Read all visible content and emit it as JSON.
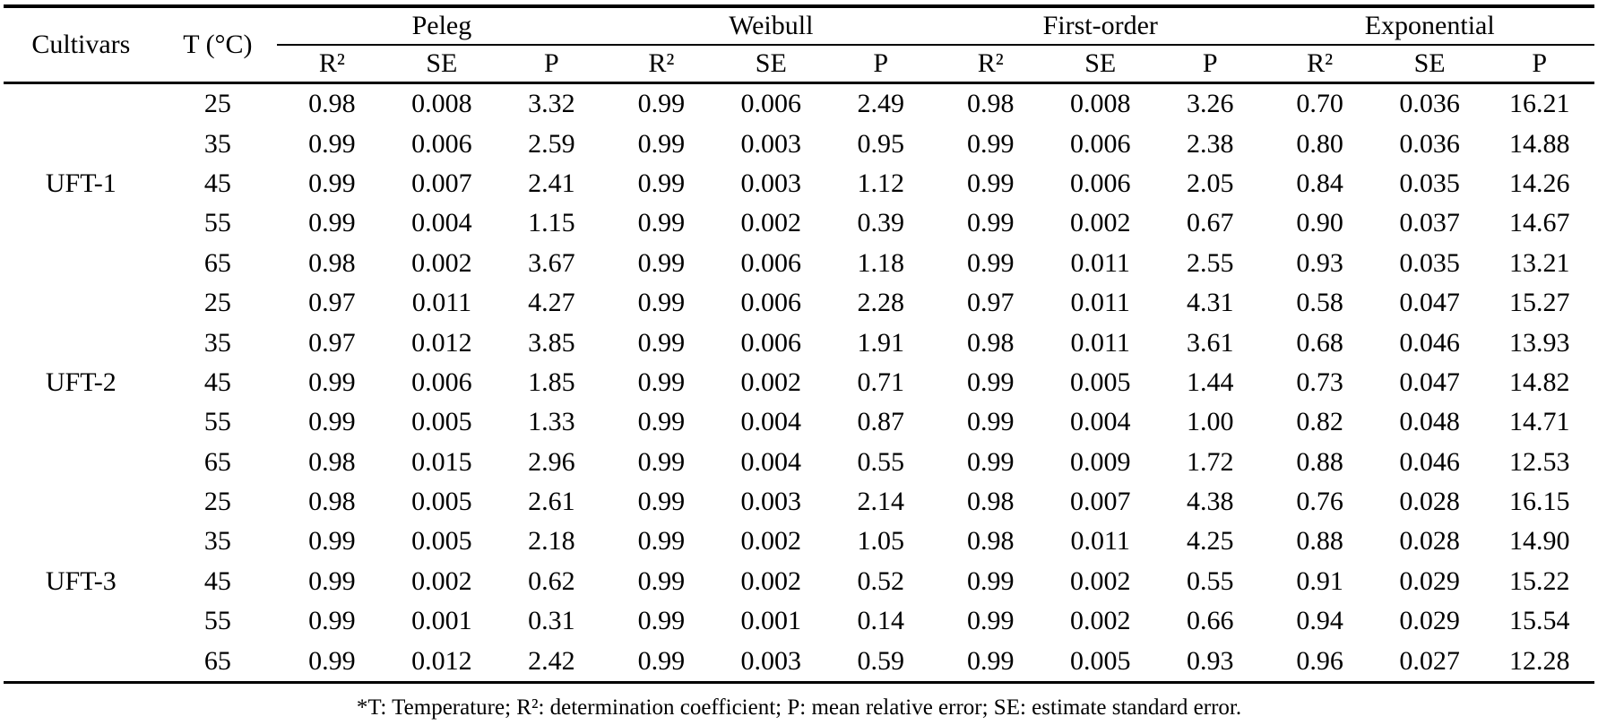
{
  "table": {
    "col_headers": {
      "cultivars": "Cultivars",
      "temperature": "T (°C)",
      "groups": [
        {
          "label": "Peleg"
        },
        {
          "label": "Weibull"
        },
        {
          "label": "First-order"
        },
        {
          "label": "Exponential"
        }
      ],
      "sub_headers": [
        "R²",
        "SE",
        "P"
      ]
    },
    "cultivar_groups": [
      {
        "cultivar": "UFT-1",
        "rows": [
          {
            "t": "25",
            "values": [
              "0.98",
              "0.008",
              "3.32",
              "0.99",
              "0.006",
              "2.49",
              "0.98",
              "0.008",
              "3.26",
              "0.70",
              "0.036",
              "16.21"
            ]
          },
          {
            "t": "35",
            "values": [
              "0.99",
              "0.006",
              "2.59",
              "0.99",
              "0.003",
              "0.95",
              "0.99",
              "0.006",
              "2.38",
              "0.80",
              "0.036",
              "14.88"
            ]
          },
          {
            "t": "45",
            "values": [
              "0.99",
              "0.007",
              "2.41",
              "0.99",
              "0.003",
              "1.12",
              "0.99",
              "0.006",
              "2.05",
              "0.84",
              "0.035",
              "14.26"
            ]
          },
          {
            "t": "55",
            "values": [
              "0.99",
              "0.004",
              "1.15",
              "0.99",
              "0.002",
              "0.39",
              "0.99",
              "0.002",
              "0.67",
              "0.90",
              "0.037",
              "14.67"
            ]
          },
          {
            "t": "65",
            "values": [
              "0.98",
              "0.002",
              "3.67",
              "0.99",
              "0.006",
              "1.18",
              "0.99",
              "0.011",
              "2.55",
              "0.93",
              "0.035",
              "13.21"
            ]
          }
        ]
      },
      {
        "cultivar": "UFT-2",
        "rows": [
          {
            "t": "25",
            "values": [
              "0.97",
              "0.011",
              "4.27",
              "0.99",
              "0.006",
              "2.28",
              "0.97",
              "0.011",
              "4.31",
              "0.58",
              "0.047",
              "15.27"
            ]
          },
          {
            "t": "35",
            "values": [
              "0.97",
              "0.012",
              "3.85",
              "0.99",
              "0.006",
              "1.91",
              "0.98",
              "0.011",
              "3.61",
              "0.68",
              "0.046",
              "13.93"
            ]
          },
          {
            "t": "45",
            "values": [
              "0.99",
              "0.006",
              "1.85",
              "0.99",
              "0.002",
              "0.71",
              "0.99",
              "0.005",
              "1.44",
              "0.73",
              "0.047",
              "14.82"
            ]
          },
          {
            "t": "55",
            "values": [
              "0.99",
              "0.005",
              "1.33",
              "0.99",
              "0.004",
              "0.87",
              "0.99",
              "0.004",
              "1.00",
              "0.82",
              "0.048",
              "14.71"
            ]
          },
          {
            "t": "65",
            "values": [
              "0.98",
              "0.015",
              "2.96",
              "0.99",
              "0.004",
              "0.55",
              "0.99",
              "0.009",
              "1.72",
              "0.88",
              "0.046",
              "12.53"
            ]
          }
        ]
      },
      {
        "cultivar": "UFT-3",
        "rows": [
          {
            "t": "25",
            "values": [
              "0.98",
              "0.005",
              "2.61",
              "0.99",
              "0.003",
              "2.14",
              "0.98",
              "0.007",
              "4.38",
              "0.76",
              "0.028",
              "16.15"
            ]
          },
          {
            "t": "35",
            "values": [
              "0.99",
              "0.005",
              "2.18",
              "0.99",
              "0.002",
              "1.05",
              "0.98",
              "0.011",
              "4.25",
              "0.88",
              "0.028",
              "14.90"
            ]
          },
          {
            "t": "45",
            "values": [
              "0.99",
              "0.002",
              "0.62",
              "0.99",
              "0.002",
              "0.52",
              "0.99",
              "0.002",
              "0.55",
              "0.91",
              "0.029",
              "15.22"
            ]
          },
          {
            "t": "55",
            "values": [
              "0.99",
              "0.001",
              "0.31",
              "0.99",
              "0.001",
              "0.14",
              "0.99",
              "0.002",
              "0.66",
              "0.94",
              "0.029",
              "15.54"
            ]
          },
          {
            "t": "65",
            "values": [
              "0.99",
              "0.012",
              "2.42",
              "0.99",
              "0.003",
              "0.59",
              "0.99",
              "0.005",
              "0.93",
              "0.96",
              "0.027",
              "12.28"
            ]
          }
        ]
      }
    ],
    "footnote": "*T: Temperature; R²: determination coefficient; P: mean relative error; SE: estimate standard error."
  }
}
